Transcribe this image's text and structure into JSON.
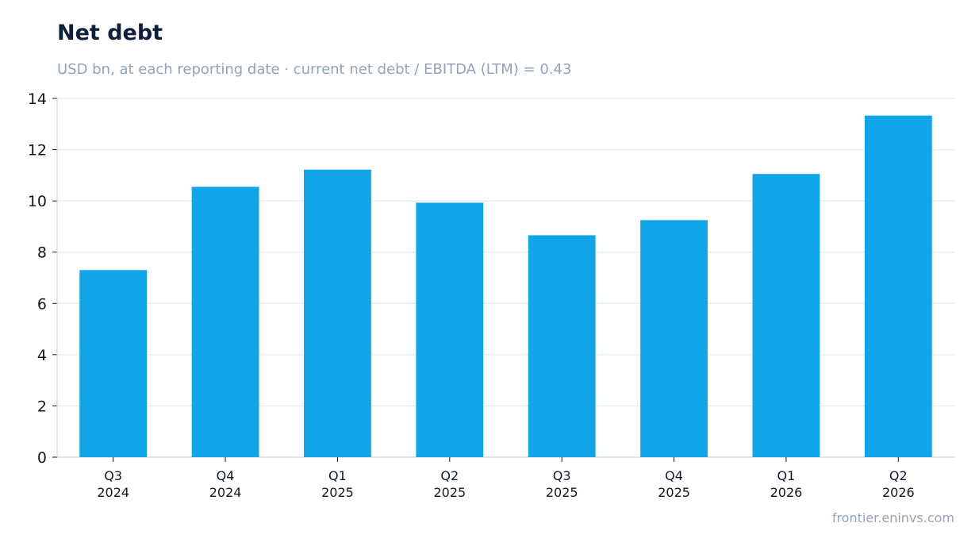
{
  "title": "Net debt",
  "subtitle": "USD bn, at each reporting date · current net debt / EBITDA (LTM) = 0.43",
  "source": "frontier.eninvs.com",
  "colors": {
    "bar": "#10a5e8",
    "grid": "#e2e8f0",
    "axis": "#cbd5e1",
    "text": "#111827"
  },
  "chart_data": {
    "type": "bar",
    "title": "Net debt",
    "subtitle": "USD bn, at each reporting date · current net debt / EBITDA (LTM) = 0.43",
    "categories": [
      [
        "Q3",
        "2024"
      ],
      [
        "Q4",
        "2024"
      ],
      [
        "Q1",
        "2025"
      ],
      [
        "Q2",
        "2025"
      ],
      [
        "Q3",
        "2025"
      ],
      [
        "Q4",
        "2025"
      ],
      [
        "Q1",
        "2026"
      ],
      [
        "Q2",
        "2026"
      ]
    ],
    "values": [
      7.3,
      10.55,
      11.22,
      9.93,
      8.66,
      9.25,
      11.05,
      13.33
    ],
    "ylim": [
      0,
      14
    ],
    "yticks": [
      0,
      2,
      4,
      6,
      8,
      10,
      12,
      14
    ],
    "grid": true
  }
}
